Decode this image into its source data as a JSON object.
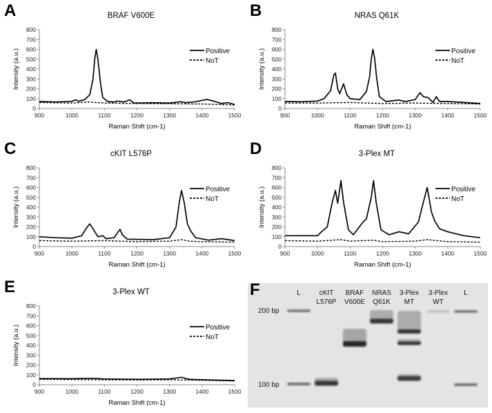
{
  "chart_data": [
    {
      "panel_label": "A",
      "type": "line",
      "title": "BRAF V600E",
      "xlabel": "Raman Shift (cm-1)",
      "ylabel": "Intensity (a.u.)",
      "xlim": [
        900,
        1500
      ],
      "ylim": [
        0,
        800
      ],
      "xticks": [
        900,
        1000,
        1100,
        1200,
        1300,
        1400,
        1500
      ],
      "yticks": [
        0,
        100,
        200,
        300,
        400,
        500,
        600,
        700,
        800
      ],
      "legend": "top-right",
      "grid": false,
      "series": [
        {
          "name": "Positive",
          "style": "solid",
          "x": [
            900,
            950,
            1000,
            1012,
            1020,
            1040,
            1055,
            1065,
            1070,
            1075,
            1080,
            1088,
            1095,
            1110,
            1130,
            1140,
            1160,
            1178,
            1190,
            1250,
            1300,
            1335,
            1350,
            1380,
            1415,
            1440,
            1460,
            1480,
            1500
          ],
          "y": [
            70,
            65,
            72,
            88,
            72,
            90,
            140,
            300,
            500,
            600,
            500,
            250,
            110,
            70,
            65,
            75,
            65,
            88,
            55,
            58,
            55,
            68,
            58,
            68,
            92,
            70,
            50,
            58,
            40
          ]
        },
        {
          "name": "NoT",
          "style": "dashed",
          "x": [
            900,
            1000,
            1050,
            1100,
            1200,
            1300,
            1400,
            1500
          ],
          "y": [
            60,
            55,
            65,
            55,
            50,
            48,
            45,
            35
          ]
        }
      ]
    },
    {
      "panel_label": "B",
      "type": "line",
      "title": "NRAS Q61K",
      "xlabel": "Raman Shift (cm-1)",
      "ylabel": "Intensity (a.u.)",
      "xlim": [
        900,
        1500
      ],
      "ylim": [
        0,
        800
      ],
      "xticks": [
        900,
        1000,
        1100,
        1200,
        1300,
        1400,
        1500
      ],
      "yticks": [
        0,
        100,
        200,
        300,
        400,
        500,
        600,
        700,
        800
      ],
      "legend": "top-right",
      "grid": false,
      "series": [
        {
          "name": "Positive",
          "style": "solid",
          "x": [
            900,
            950,
            1000,
            1020,
            1040,
            1050,
            1055,
            1062,
            1068,
            1080,
            1090,
            1100,
            1130,
            1150,
            1160,
            1165,
            1170,
            1175,
            1182,
            1190,
            1210,
            1250,
            1270,
            1300,
            1315,
            1325,
            1340,
            1355,
            1365,
            1375,
            1400,
            1450,
            1500
          ],
          "y": [
            70,
            68,
            75,
            100,
            180,
            340,
            360,
            200,
            150,
            250,
            140,
            100,
            90,
            170,
            320,
            500,
            600,
            520,
            300,
            120,
            70,
            85,
            70,
            90,
            160,
            120,
            110,
            60,
            120,
            70,
            70,
            60,
            50
          ]
        },
        {
          "name": "NoT",
          "style": "dashed",
          "x": [
            900,
            1000,
            1100,
            1200,
            1300,
            1400,
            1500
          ],
          "y": [
            55,
            55,
            60,
            50,
            55,
            50,
            45
          ]
        }
      ]
    },
    {
      "panel_label": "C",
      "type": "line",
      "title": "cKIT L576P",
      "xlabel": "Raman Shift (cm-1)",
      "ylabel": "Intensity (a.u.)",
      "xlim": [
        900,
        1500
      ],
      "ylim": [
        0,
        800
      ],
      "xticks": [
        900,
        1000,
        1100,
        1200,
        1300,
        1400,
        1500
      ],
      "yticks": [
        0,
        100,
        200,
        300,
        400,
        500,
        600,
        700,
        800
      ],
      "legend": "top-right",
      "grid": false,
      "series": [
        {
          "name": "Positive",
          "style": "solid",
          "x": [
            900,
            950,
            1000,
            1030,
            1045,
            1055,
            1065,
            1080,
            1095,
            1105,
            1130,
            1140,
            1148,
            1155,
            1170,
            1250,
            1300,
            1320,
            1330,
            1337,
            1345,
            1355,
            1365,
            1380,
            1420,
            1460,
            1500
          ],
          "y": [
            100,
            90,
            85,
            110,
            190,
            230,
            180,
            100,
            110,
            80,
            90,
            140,
            175,
            120,
            75,
            70,
            90,
            200,
            450,
            570,
            450,
            230,
            160,
            90,
            65,
            80,
            60
          ]
        },
        {
          "name": "NoT",
          "style": "dashed",
          "x": [
            900,
            1000,
            1100,
            1200,
            1300,
            1337,
            1360,
            1400,
            1500
          ],
          "y": [
            60,
            55,
            60,
            50,
            55,
            70,
            55,
            50,
            45
          ]
        }
      ]
    },
    {
      "panel_label": "D",
      "type": "line",
      "title": "3-Plex MT",
      "xlabel": "Raman Shift (cm-1)",
      "ylabel": "Intensity (a.u.)",
      "xlim": [
        900,
        1500
      ],
      "ylim": [
        0,
        800
      ],
      "xticks": [
        900,
        1000,
        1100,
        1200,
        1300,
        1400,
        1500
      ],
      "yticks": [
        0,
        100,
        200,
        300,
        400,
        500,
        600,
        700,
        800
      ],
      "legend": "top-right",
      "grid": false,
      "series": [
        {
          "name": "Positive",
          "style": "solid",
          "x": [
            900,
            1000,
            1012,
            1030,
            1045,
            1055,
            1062,
            1072,
            1080,
            1095,
            1110,
            1140,
            1150,
            1165,
            1172,
            1180,
            1195,
            1220,
            1250,
            1280,
            1310,
            1325,
            1337,
            1350,
            1360,
            1375,
            1400,
            1450,
            1500
          ],
          "y": [
            110,
            110,
            150,
            200,
            450,
            570,
            440,
            670,
            450,
            170,
            120,
            250,
            280,
            500,
            670,
            450,
            170,
            120,
            150,
            130,
            250,
            450,
            600,
            350,
            260,
            180,
            150,
            110,
            90
          ]
        },
        {
          "name": "NoT",
          "style": "dashed",
          "x": [
            900,
            1000,
            1070,
            1100,
            1170,
            1200,
            1300,
            1337,
            1400,
            1500
          ],
          "y": [
            60,
            55,
            70,
            55,
            65,
            50,
            55,
            70,
            50,
            45
          ]
        }
      ]
    },
    {
      "panel_label": "E",
      "type": "line",
      "title": "3-Plex WT",
      "xlabel": "Raman Shift (cm-1)",
      "ylabel": "Intensity (a.u.)",
      "xlim": [
        900,
        1500
      ],
      "ylim": [
        0,
        800
      ],
      "xticks": [
        900,
        1000,
        1100,
        1200,
        1300,
        1400,
        1500
      ],
      "yticks": [
        0,
        100,
        200,
        300,
        400,
        500,
        600,
        700,
        800
      ],
      "legend": "top-right",
      "grid": false,
      "series": [
        {
          "name": "Positive",
          "style": "solid",
          "x": [
            900,
            1000,
            1060,
            1100,
            1200,
            1300,
            1337,
            1360,
            1400,
            1500
          ],
          "y": [
            62,
            60,
            65,
            58,
            55,
            58,
            75,
            55,
            50,
            42
          ]
        },
        {
          "name": "NoT",
          "style": "dashed",
          "x": [
            900,
            1000,
            1100,
            1200,
            1300,
            1400,
            1500
          ],
          "y": [
            55,
            52,
            50,
            48,
            50,
            45,
            38
          ]
        }
      ]
    }
  ],
  "gel": {
    "panel_label": "F",
    "ladder_labels": [
      "200 bp",
      "100 bp"
    ],
    "lanes": [
      {
        "label": [
          "L",
          ""
        ]
      },
      {
        "label": [
          "cKIT",
          "L576P"
        ]
      },
      {
        "label": [
          "BRAF",
          "V600E"
        ]
      },
      {
        "label": [
          "NRAS",
          "Q61K"
        ]
      },
      {
        "label": [
          "3-Plex",
          "MT"
        ]
      },
      {
        "label": [
          "3-Plex",
          "WT"
        ]
      },
      {
        "label": [
          "L",
          ""
        ]
      }
    ]
  }
}
